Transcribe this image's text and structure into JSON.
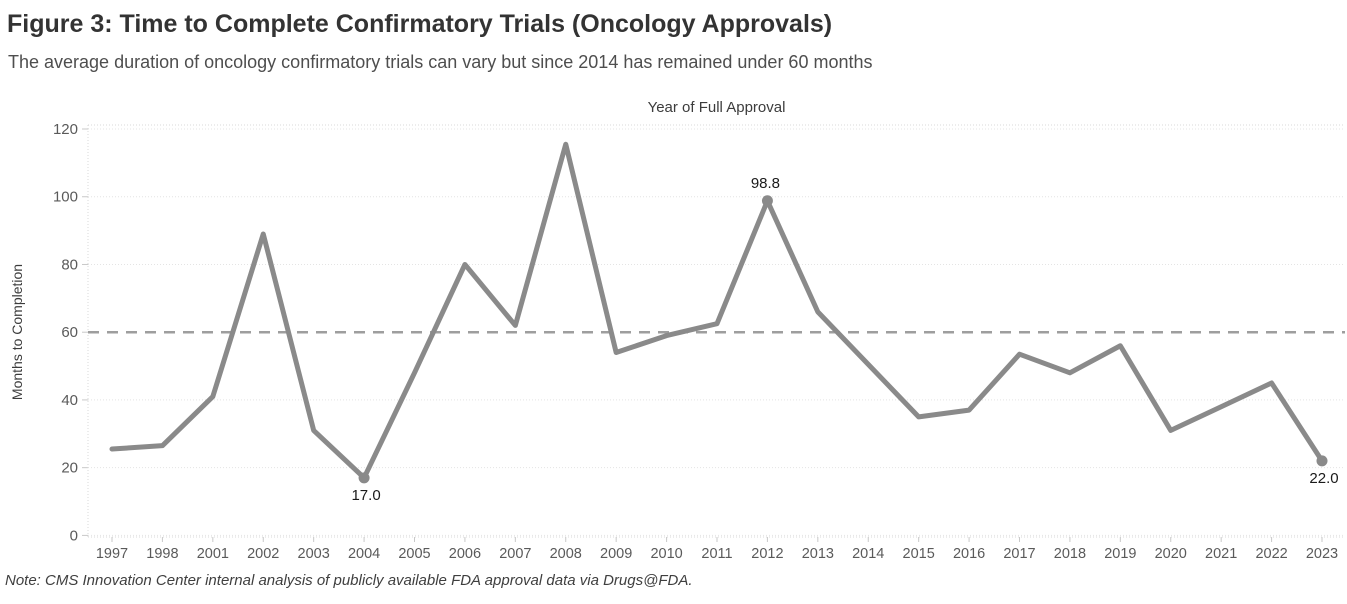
{
  "header": {
    "title": "Figure 3: Time to Complete Confirmatory Trials (Oncology Approvals)",
    "subtitle": "The average duration of oncology confirmatory trials can vary but since 2014 has remained under 60 months"
  },
  "note": "Note: CMS Innovation Center internal analysis of publicly available FDA approval data via Drugs@FDA.",
  "chart_data": {
    "type": "line",
    "title": "Year of Full Approval",
    "xlabel": "Year of Full Approval",
    "ylabel": "Months to Completion",
    "categories": [
      "1997",
      "1998",
      "2001",
      "2002",
      "2003",
      "2004",
      "2005",
      "2006",
      "2007",
      "2008",
      "2009",
      "2010",
      "2011",
      "2012",
      "2013",
      "2014",
      "2015",
      "2016",
      "2017",
      "2018",
      "2019",
      "2020",
      "2021",
      "2022",
      "2023"
    ],
    "values": [
      25.5,
      26.5,
      41,
      89,
      31,
      17.0,
      48,
      80,
      62,
      115.5,
      54,
      59,
      62.5,
      98.8,
      66,
      50.5,
      35,
      37,
      53.5,
      48,
      56,
      31,
      38,
      45,
      22.0
    ],
    "ylim": [
      0,
      120
    ],
    "yticks": [
      0,
      20,
      40,
      60,
      80,
      100,
      120
    ],
    "grid": true,
    "legend": "none",
    "reference_line": {
      "value": 60,
      "style": "dashed"
    },
    "point_labels": [
      {
        "category": "2004",
        "text": "17.0",
        "position": "below"
      },
      {
        "category": "2012",
        "text": "98.8",
        "position": "above"
      },
      {
        "category": "2023",
        "text": "22.0",
        "position": "below"
      }
    ],
    "colors": {
      "line": "#8a8a8a",
      "marker": "#8a8a8a",
      "reference_line": "#9e9e9e",
      "grid_line": "#e4e4e4",
      "axis_line": "#d8d8d8",
      "tick_mark": "#c9c9c9",
      "tick_text": "#5a5a5a",
      "data_label_text": "#1a1a1a"
    }
  }
}
